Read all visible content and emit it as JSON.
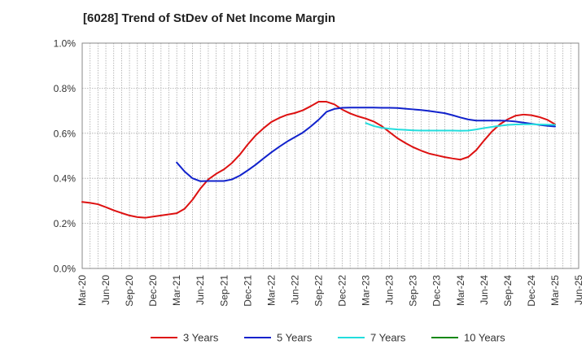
{
  "chart_data": {
    "type": "line",
    "title": "[6028]  Trend of StDev of Net Income Margin",
    "xlabel": "",
    "ylabel": "",
    "x_ticks": [
      "Mar-20",
      "Jun-20",
      "Sep-20",
      "Dec-20",
      "Mar-21",
      "Jun-21",
      "Sep-21",
      "Dec-21",
      "Mar-22",
      "Jun-22",
      "Sep-22",
      "Dec-22",
      "Mar-23",
      "Jun-23",
      "Sep-23",
      "Dec-23",
      "Mar-24",
      "Jun-24",
      "Sep-24",
      "Dec-24",
      "Mar-25",
      "Jun-25"
    ],
    "y_ticks": [
      "0.0%",
      "0.2%",
      "0.4%",
      "0.6%",
      "0.8%",
      "1.0%"
    ],
    "ylim": [
      0,
      1.0
    ],
    "grid": true,
    "legend_position": "bottom",
    "series": [
      {
        "name": "3 Years",
        "color": "#dd1111",
        "x": [
          "Mar-20",
          "Apr-20",
          "May-20",
          "Jun-20",
          "Jul-20",
          "Aug-20",
          "Sep-20",
          "Oct-20",
          "Nov-20",
          "Dec-20",
          "Jan-21",
          "Feb-21",
          "Mar-21",
          "Apr-21",
          "May-21",
          "Jun-21",
          "Jul-21",
          "Aug-21",
          "Sep-21",
          "Oct-21",
          "Nov-21",
          "Dec-21",
          "Jan-22",
          "Feb-22",
          "Mar-22",
          "Apr-22",
          "May-22",
          "Jun-22",
          "Jul-22",
          "Aug-22",
          "Sep-22",
          "Oct-22",
          "Nov-22",
          "Dec-22",
          "Jan-23",
          "Feb-23",
          "Mar-23",
          "Apr-23",
          "May-23",
          "Jun-23",
          "Jul-23",
          "Aug-23",
          "Sep-23",
          "Oct-23",
          "Nov-23",
          "Dec-23",
          "Jan-24",
          "Feb-24",
          "Mar-24",
          "Apr-24",
          "May-24",
          "Jun-24",
          "Jul-24",
          "Aug-24",
          "Sep-24",
          "Oct-24",
          "Nov-24",
          "Dec-24",
          "Jan-25",
          "Feb-25",
          "Mar-25"
        ],
        "values": [
          0.295,
          0.291,
          0.285,
          0.272,
          0.258,
          0.246,
          0.235,
          0.228,
          0.225,
          0.23,
          0.235,
          0.24,
          0.245,
          0.265,
          0.305,
          0.355,
          0.395,
          0.42,
          0.44,
          0.468,
          0.505,
          0.55,
          0.59,
          0.622,
          0.65,
          0.668,
          0.682,
          0.69,
          0.702,
          0.72,
          0.74,
          0.74,
          0.728,
          0.705,
          0.688,
          0.675,
          0.665,
          0.652,
          0.632,
          0.605,
          0.578,
          0.557,
          0.538,
          0.523,
          0.51,
          0.502,
          0.494,
          0.488,
          0.483,
          0.495,
          0.525,
          0.568,
          0.608,
          0.64,
          0.662,
          0.678,
          0.683,
          0.68,
          0.672,
          0.66,
          0.64
        ]
      },
      {
        "name": "5 Years",
        "color": "#1122cc",
        "x": [
          "Mar-21",
          "Apr-21",
          "May-21",
          "Jun-21",
          "Jul-21",
          "Aug-21",
          "Sep-21",
          "Oct-21",
          "Nov-21",
          "Dec-21",
          "Jan-22",
          "Feb-22",
          "Mar-22",
          "Apr-22",
          "May-22",
          "Jun-22",
          "Jul-22",
          "Aug-22",
          "Sep-22",
          "Oct-22",
          "Nov-22",
          "Dec-22",
          "Jan-23",
          "Feb-23",
          "Mar-23",
          "Apr-23",
          "May-23",
          "Jun-23",
          "Jul-23",
          "Aug-23",
          "Sep-23",
          "Oct-23",
          "Nov-23",
          "Dec-23",
          "Jan-24",
          "Feb-24",
          "Mar-24",
          "Apr-24",
          "May-24",
          "Jun-24",
          "Jul-24",
          "Aug-24",
          "Sep-24",
          "Oct-24",
          "Nov-24",
          "Dec-24",
          "Jan-25",
          "Feb-25",
          "Mar-25"
        ],
        "values": [
          0.47,
          0.43,
          0.4,
          0.387,
          0.388,
          0.388,
          0.388,
          0.395,
          0.412,
          0.435,
          0.46,
          0.488,
          0.515,
          0.54,
          0.563,
          0.583,
          0.603,
          0.63,
          0.66,
          0.695,
          0.708,
          0.713,
          0.714,
          0.714,
          0.714,
          0.714,
          0.713,
          0.713,
          0.712,
          0.709,
          0.706,
          0.703,
          0.699,
          0.694,
          0.689,
          0.68,
          0.67,
          0.661,
          0.656,
          0.656,
          0.656,
          0.656,
          0.655,
          0.652,
          0.647,
          0.642,
          0.637,
          0.633,
          0.63
        ]
      },
      {
        "name": "7 Years",
        "color": "#22dddd",
        "x": [
          "Mar-23",
          "Apr-23",
          "May-23",
          "Jun-23",
          "Jul-23",
          "Aug-23",
          "Sep-23",
          "Oct-23",
          "Nov-23",
          "Dec-23",
          "Jan-24",
          "Feb-24",
          "Mar-24",
          "Apr-24",
          "May-24",
          "Jun-24",
          "Jul-24",
          "Aug-24",
          "Sep-24",
          "Oct-24",
          "Nov-24",
          "Dec-24",
          "Jan-25",
          "Feb-25",
          "Mar-25"
        ],
        "values": [
          0.645,
          0.632,
          0.624,
          0.62,
          0.617,
          0.615,
          0.613,
          0.612,
          0.612,
          0.612,
          0.612,
          0.612,
          0.611,
          0.612,
          0.617,
          0.623,
          0.628,
          0.633,
          0.637,
          0.639,
          0.64,
          0.64,
          0.639,
          0.638,
          0.637
        ]
      },
      {
        "name": "10 Years",
        "color": "#118811",
        "x": [],
        "values": []
      }
    ]
  }
}
